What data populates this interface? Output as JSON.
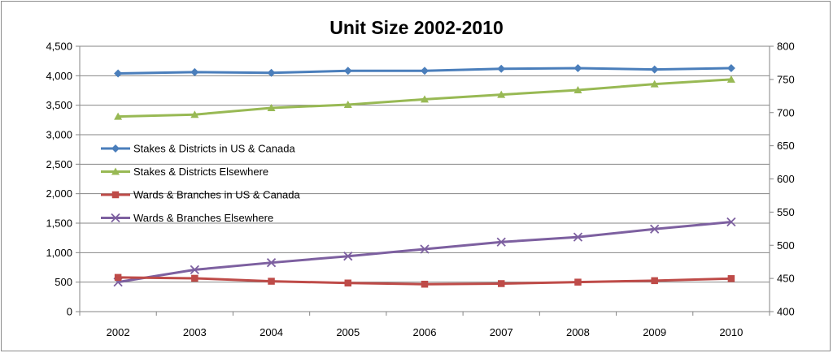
{
  "chart_data": {
    "type": "line",
    "title": "Unit Size 2002-2010",
    "categories": [
      "2002",
      "2003",
      "2004",
      "2005",
      "2006",
      "2007",
      "2008",
      "2009",
      "2010"
    ],
    "y_left": {
      "ylim": [
        0,
        4500
      ],
      "ticks": [
        "0",
        "500",
        "1,000",
        "1,500",
        "2,000",
        "2,500",
        "3,000",
        "3,500",
        "4,000",
        "4,500"
      ]
    },
    "y_right": {
      "ylim": [
        400,
        800
      ],
      "ticks": [
        "400",
        "450",
        "500",
        "550",
        "600",
        "650",
        "700",
        "750",
        "800"
      ]
    },
    "grid": "horizontal",
    "legend_position": "left-middle",
    "series": [
      {
        "name": "Stakes & Districts in US & Canada",
        "axis": "right",
        "color": "#4a7ebb",
        "marker": "diamond",
        "values": [
          759,
          761,
          760,
          763,
          763,
          766,
          767,
          765,
          767
        ]
      },
      {
        "name": "Stakes & Districts Elsewhere",
        "axis": "right",
        "color": "#98b954",
        "marker": "triangle",
        "values": [
          694,
          697,
          707,
          712,
          720,
          727,
          734,
          743,
          750
        ]
      },
      {
        "name": "Wards & Branches in US & Canada",
        "axis": "left",
        "color": "#be4b48",
        "marker": "square",
        "values": [
          580,
          565,
          515,
          485,
          465,
          475,
          500,
          525,
          560
        ]
      },
      {
        "name": "Wards & Branches Elsewhere",
        "axis": "left",
        "color": "#7d60a0",
        "marker": "x",
        "values": [
          500,
          710,
          830,
          940,
          1060,
          1180,
          1265,
          1400,
          1520
        ]
      }
    ]
  }
}
